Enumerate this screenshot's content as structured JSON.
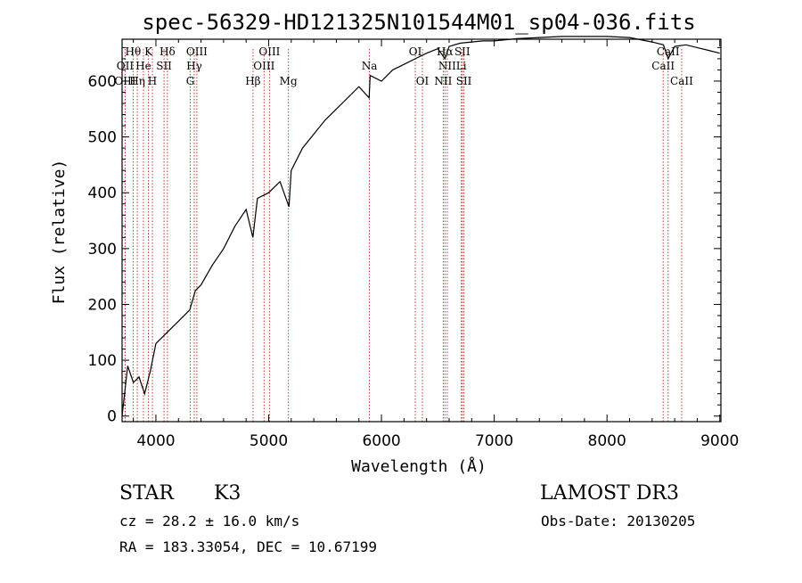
{
  "chart_data": {
    "type": "line",
    "title": "spec-56329-HD121325N101544M01_sp04-036.fits",
    "xlabel": "Wavelength (Å)",
    "ylabel": "Flux (relative)",
    "xlim": [
      3700,
      9010
    ],
    "ylim": [
      -10,
      675
    ],
    "x_ticks": [
      4000,
      5000,
      6000,
      7000,
      8000,
      9000
    ],
    "y_ticks": [
      0,
      100,
      200,
      300,
      400,
      500,
      600
    ],
    "grid": false,
    "series": [
      {
        "name": "flux",
        "x": [
          3700,
          3750,
          3800,
          3850,
          3900,
          3950,
          4000,
          4050,
          4100,
          4200,
          4300,
          4350,
          4400,
          4500,
          4600,
          4700,
          4800,
          4860,
          4900,
          5000,
          5100,
          5180,
          5200,
          5300,
          5400,
          5500,
          5600,
          5700,
          5800,
          5890,
          5900,
          6000,
          6100,
          6200,
          6300,
          6400,
          6500,
          6563,
          6600,
          6700,
          6800,
          6900,
          7000,
          7200,
          7400,
          7600,
          7800,
          8000,
          8200,
          8400,
          8500,
          8542,
          8600,
          8700,
          8800,
          8900,
          9000
        ],
        "y": [
          0,
          90,
          60,
          70,
          40,
          80,
          130,
          140,
          150,
          170,
          190,
          225,
          235,
          270,
          300,
          340,
          370,
          320,
          390,
          400,
          420,
          375,
          440,
          480,
          505,
          530,
          550,
          570,
          590,
          570,
          610,
          600,
          620,
          630,
          640,
          650,
          658,
          640,
          662,
          668,
          670,
          672,
          672,
          676,
          678,
          680,
          680,
          680,
          678,
          670,
          665,
          640,
          662,
          665,
          660,
          655,
          650
        ]
      }
    ],
    "lines": [
      {
        "name": "Hθ",
        "wl": 3798,
        "row": 1
      },
      {
        "name": "OII",
        "wl": 3727,
        "row": 2
      },
      {
        "name": "OIII",
        "wl": 3727,
        "row": 3
      },
      {
        "name": "He",
        "wl": 3889,
        "row": 2
      },
      {
        "name": "Hη",
        "wl": 3835,
        "row": 3
      },
      {
        "name": "K",
        "wl": 3934,
        "row": 1
      },
      {
        "name": "SII",
        "wl": 4072,
        "row": 2
      },
      {
        "name": "H",
        "wl": 3969,
        "row": 3
      },
      {
        "name": "Hδ",
        "wl": 4102,
        "row": 1
      },
      {
        "name": "OIII",
        "wl": 4363,
        "row": 1
      },
      {
        "name": "Hγ",
        "wl": 4340,
        "row": 2
      },
      {
        "name": "G",
        "wl": 4305,
        "row": 3
      },
      {
        "name": "Hβ",
        "wl": 4861,
        "row": 3
      },
      {
        "name": "OIII",
        "wl": 5007,
        "row": 1
      },
      {
        "name": "OIII",
        "wl": 4959,
        "row": 2
      },
      {
        "name": "Mg",
        "wl": 5175,
        "row": 3
      },
      {
        "name": "Na",
        "wl": 5893,
        "row": 2
      },
      {
        "name": "OI",
        "wl": 6300,
        "row": 1
      },
      {
        "name": "OI",
        "wl": 6363,
        "row": 3
      },
      {
        "name": "Hα",
        "wl": 6563,
        "row": 1
      },
      {
        "name": "NII",
        "wl": 6583,
        "row": 2
      },
      {
        "name": "NII",
        "wl": 6548,
        "row": 3
      },
      {
        "name": "SII",
        "wl": 6717,
        "row": 1
      },
      {
        "name": "Li",
        "wl": 6708,
        "row": 2
      },
      {
        "name": "SII",
        "wl": 6731,
        "row": 3
      },
      {
        "name": "CaII",
        "wl": 8542,
        "row": 1
      },
      {
        "name": "CaII",
        "wl": 8498,
        "row": 2
      },
      {
        "name": "CaII",
        "wl": 8662,
        "row": 3
      }
    ]
  },
  "info": {
    "class_label": "STAR",
    "subclass": "K3",
    "survey": "LAMOST DR3",
    "cz": "cz = 28.2 ± 16.0 km/s",
    "obs_date": "Obs-Date: 20130205",
    "coords": "RA = 183.33054, DEC =  10.67199"
  },
  "colors": {
    "spectrum": "#000000",
    "line_marker": "#c0392b",
    "axes": "#000000"
  }
}
